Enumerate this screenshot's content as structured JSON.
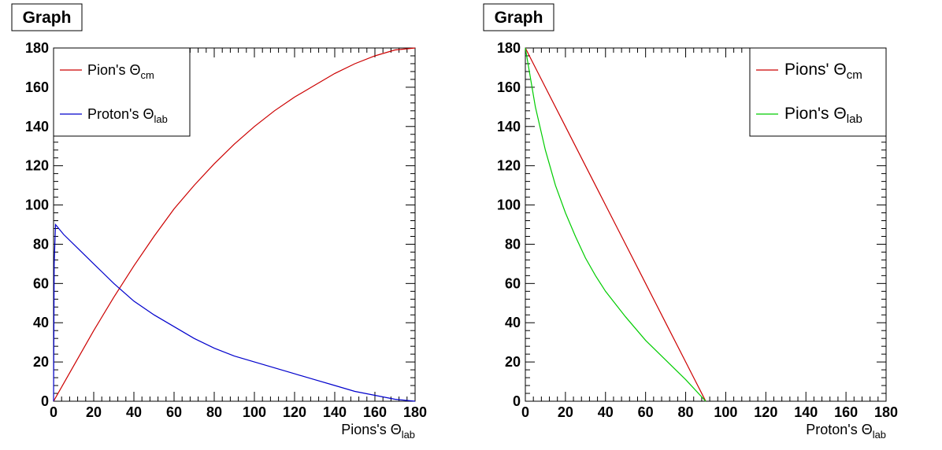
{
  "chart_data": [
    {
      "type": "line",
      "title": "Graph",
      "xlabel": {
        "main": "Pions's Θ",
        "sub": "lab"
      },
      "ylabel": "",
      "xlim": [
        0,
        180
      ],
      "ylim": [
        0,
        180
      ],
      "xticks": [
        "0",
        "20",
        "40",
        "60",
        "80",
        "100",
        "120",
        "140",
        "160",
        "180"
      ],
      "yticks": [
        "0",
        "20",
        "40",
        "60",
        "80",
        "100",
        "120",
        "140",
        "160",
        "180"
      ],
      "grid": false,
      "legend_position": "top-left",
      "series": [
        {
          "name": {
            "main": "Pion's Θ",
            "sub": "cm"
          },
          "color": "#cc0000",
          "x": [
            0,
            10,
            20,
            30,
            40,
            50,
            60,
            70,
            80,
            90,
            100,
            110,
            120,
            130,
            140,
            150,
            160,
            170,
            180
          ],
          "y": [
            0,
            18,
            36,
            53,
            69,
            84,
            98,
            110,
            121,
            131,
            140,
            148,
            155,
            161,
            167,
            172,
            176,
            179,
            180
          ]
        },
        {
          "name": {
            "main": "Proton's Θ",
            "sub": "lab"
          },
          "color": "#0000cc",
          "x": [
            0,
            0.3,
            1,
            5,
            10,
            20,
            30,
            40,
            50,
            60,
            70,
            80,
            90,
            100,
            110,
            120,
            130,
            140,
            150,
            160,
            170,
            180
          ],
          "y": [
            0,
            70,
            90,
            85,
            80,
            70,
            60,
            51,
            44,
            38,
            32,
            27,
            23,
            20,
            17,
            14,
            11,
            8,
            5,
            3,
            1,
            0
          ]
        }
      ]
    },
    {
      "type": "line",
      "title": "Graph",
      "xlabel": {
        "main": "Proton's Θ",
        "sub": "lab"
      },
      "ylabel": "",
      "xlim": [
        0,
        180
      ],
      "ylim": [
        0,
        180
      ],
      "xticks": [
        "0",
        "20",
        "40",
        "60",
        "80",
        "100",
        "120",
        "140",
        "160",
        "180"
      ],
      "yticks": [
        "0",
        "20",
        "40",
        "60",
        "80",
        "100",
        "120",
        "140",
        "160",
        "180"
      ],
      "grid": false,
      "legend_position": "top-right",
      "series": [
        {
          "name": {
            "main": "Pions' Θ",
            "sub": "cm"
          },
          "color": "#cc0000",
          "x": [
            0,
            10,
            20,
            30,
            40,
            50,
            60,
            70,
            80,
            90
          ],
          "y": [
            180,
            160,
            140,
            120,
            100,
            80,
            60,
            40,
            20,
            0
          ]
        },
        {
          "name": {
            "main": "Pion's Θ",
            "sub": "lab"
          },
          "color": "#00cc00",
          "x": [
            0,
            5,
            10,
            15,
            20,
            25,
            30,
            35,
            40,
            50,
            60,
            70,
            80,
            90
          ],
          "y": [
            180,
            150,
            128,
            110,
            96,
            84,
            73,
            64,
            56,
            43,
            31,
            21,
            11,
            0
          ]
        }
      ]
    }
  ]
}
